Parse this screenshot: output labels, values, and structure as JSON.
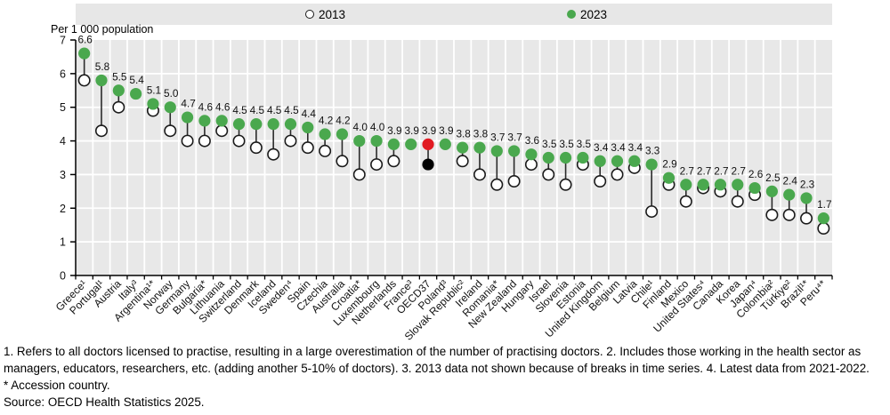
{
  "legend": {
    "label_2013": "2013",
    "label_2023": "2023"
  },
  "colors": {
    "green_2023": "#4aa84e",
    "red_oecd_2023": "#e11b22",
    "black_oecd_2013": "#000000",
    "hollow_stroke": "#1a1a1a",
    "connector": "#2b2b2b",
    "plot_background": "#e8e8e8",
    "gridline": "#ffffff",
    "axis": "#000000"
  },
  "chart_data": {
    "type": "scatter",
    "subtype": "dumbbell",
    "title": "",
    "xlabel": "",
    "ylabel": "Per 1 000 population",
    "ylim": [
      0,
      7
    ],
    "yticks": [
      0,
      1,
      2,
      3,
      4,
      5,
      6,
      7
    ],
    "grid": true,
    "legend_position": "top",
    "series_names": [
      "2013",
      "2023"
    ],
    "highlight_label": "OECD37",
    "countries": [
      {
        "label": "Greece¹",
        "y2013": 5.8,
        "y2023": 6.6
      },
      {
        "label": "Portugal¹",
        "y2013": 4.3,
        "y2023": 5.8
      },
      {
        "label": "Austria",
        "y2013": 5.0,
        "y2023": 5.5
      },
      {
        "label": "Italy³",
        "y2013": null,
        "y2023": 5.4
      },
      {
        "label": "Argentina¹*",
        "y2013": 4.9,
        "y2023": 5.1
      },
      {
        "label": "Norway",
        "y2013": 4.3,
        "y2023": 5.0
      },
      {
        "label": "Germany",
        "y2013": 4.0,
        "y2023": 4.7
      },
      {
        "label": "Bulgaria*",
        "y2013": 4.0,
        "y2023": 4.6
      },
      {
        "label": "Lithuania",
        "y2013": 4.3,
        "y2023": 4.6
      },
      {
        "label": "Switzerland",
        "y2013": 4.0,
        "y2023": 4.5
      },
      {
        "label": "Denmark",
        "y2013": 3.8,
        "y2023": 4.5
      },
      {
        "label": "Iceland",
        "y2013": 3.6,
        "y2023": 4.5
      },
      {
        "label": "Sweden⁴",
        "y2013": 4.0,
        "y2023": 4.5
      },
      {
        "label": "Spain",
        "y2013": 3.8,
        "y2023": 4.4
      },
      {
        "label": "Czechia",
        "y2013": 3.7,
        "y2023": 4.2
      },
      {
        "label": "Australia",
        "y2013": 3.4,
        "y2023": 4.2
      },
      {
        "label": "Croatia*",
        "y2013": 3.0,
        "y2023": 4.0
      },
      {
        "label": "Luxembourg",
        "y2013": 3.3,
        "y2023": 4.0
      },
      {
        "label": "Netherlands",
        "y2013": 3.4,
        "y2023": 3.9
      },
      {
        "label": "France³",
        "y2013": null,
        "y2023": 3.9
      },
      {
        "label": "OECD37",
        "y2013": 3.3,
        "y2023": 3.9,
        "highlight": true
      },
      {
        "label": "Poland³",
        "y2013": null,
        "y2023": 3.9
      },
      {
        "label": "Slovak Republic²",
        "y2013": 3.4,
        "y2023": 3.8
      },
      {
        "label": "Ireland",
        "y2013": 3.0,
        "y2023": 3.8
      },
      {
        "label": "Romania*",
        "y2013": 2.7,
        "y2023": 3.7
      },
      {
        "label": "New Zealand",
        "y2013": 2.8,
        "y2023": 3.7
      },
      {
        "label": "Hungary",
        "y2013": 3.3,
        "y2023": 3.6
      },
      {
        "label": "Israel",
        "y2013": 3.0,
        "y2023": 3.5
      },
      {
        "label": "Slovenia",
        "y2013": 2.7,
        "y2023": 3.5
      },
      {
        "label": "Estonia",
        "y2013": 3.3,
        "y2023": 3.5
      },
      {
        "label": "United Kingdom",
        "y2013": 2.8,
        "y2023": 3.4
      },
      {
        "label": "Belgium",
        "y2013": 3.0,
        "y2023": 3.4
      },
      {
        "label": "Latvia",
        "y2013": 3.2,
        "y2023": 3.4
      },
      {
        "label": "Chile¹",
        "y2013": 1.9,
        "y2023": 3.3
      },
      {
        "label": "Finland",
        "y2013": 2.7,
        "y2023": 2.9
      },
      {
        "label": "Mexico",
        "y2013": 2.2,
        "y2023": 2.7
      },
      {
        "label": "United States⁴",
        "y2013": 2.6,
        "y2023": 2.7
      },
      {
        "label": "Canada",
        "y2013": 2.5,
        "y2023": 2.7
      },
      {
        "label": "Korea",
        "y2013": 2.2,
        "y2023": 2.7
      },
      {
        "label": "Japan⁴",
        "y2013": 2.4,
        "y2023": 2.6
      },
      {
        "label": "Colombia²",
        "y2013": 1.8,
        "y2023": 2.5
      },
      {
        "label": "Türkiye²",
        "y2013": 1.8,
        "y2023": 2.4
      },
      {
        "label": "Brazil¹*",
        "y2013": 1.7,
        "y2023": 2.3
      },
      {
        "label": "Peru⁴*",
        "y2013": 1.4,
        "y2023": 1.7
      }
    ]
  },
  "footnotes": {
    "line1": "1. Refers to all doctors licensed to practise, resulting in a large overestimation of the number of practising doctors. 2. Includes those working in the health sector as managers, educators, researchers, etc. (adding another 5-10% of doctors). 3. 2013 data not shown because of breaks in time series. 4. Latest data from 2021-2022.",
    "line2": "* Accession country.",
    "source": "Source: OECD Health Statistics 2025."
  }
}
